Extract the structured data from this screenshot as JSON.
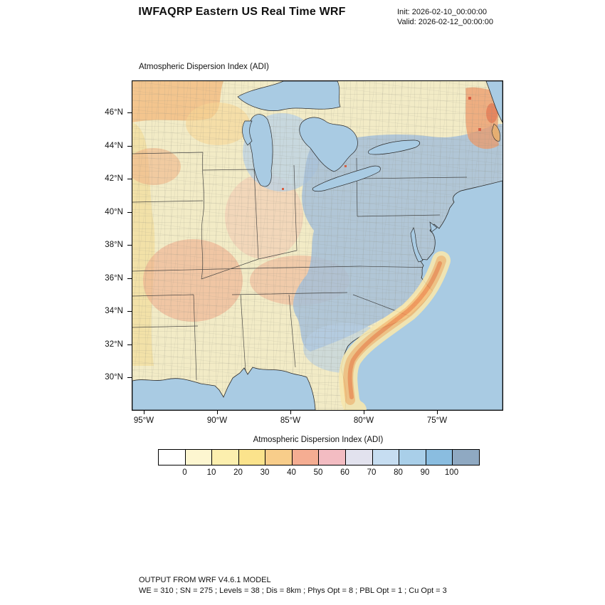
{
  "header": {
    "title": "IWFAQRP Eastern US Real Time WRF",
    "init": "Init: 2026-02-10_00:00:00",
    "valid": "Valid: 2026-02-12_00:00:00"
  },
  "plot": {
    "label": "Atmospheric Dispersion Index   (ADI)"
  },
  "axes": {
    "y_ticks": [
      "46°N",
      "44°N",
      "42°N",
      "40°N",
      "38°N",
      "36°N",
      "34°N",
      "32°N",
      "30°N"
    ],
    "x_ticks": [
      "95°W",
      "90°W",
      "85°W",
      "80°W",
      "75°W"
    ]
  },
  "chart_data": {
    "type": "heatmap",
    "title": "Atmospheric Dispersion Index (ADI)",
    "field": "Atmospheric Dispersion Index",
    "projection": "lat-lon map of Eastern US",
    "x_axis": {
      "label": "longitude",
      "ticks": [
        "95°W",
        "90°W",
        "85°W",
        "80°W",
        "75°W"
      ],
      "approx_range": [
        "96°W",
        "70.5°W"
      ]
    },
    "y_axis": {
      "label": "latitude",
      "ticks": [
        "46°N",
        "44°N",
        "42°N",
        "40°N",
        "38°N",
        "36°N",
        "34°N",
        "32°N",
        "30°N"
      ],
      "approx_range": [
        "28.2°N",
        "47.9°N"
      ]
    },
    "colorbar": {
      "label": "Atmospheric Dispersion Index  (ADI)",
      "orientation": "horizontal",
      "tick_labels": [
        "0",
        "10",
        "20",
        "30",
        "40",
        "50",
        "60",
        "70",
        "80",
        "90",
        "100"
      ],
      "colors": [
        "#ffffff",
        "#fdf6d0",
        "#fcefae",
        "#fbe38c",
        "#f8cd8a",
        "#f5ad92",
        "#f3bcc2",
        "#e2e2ee",
        "#c6ddf1",
        "#a9cfe9",
        "#8abde0",
        "#8fa9c2"
      ]
    },
    "spatial_summary": {
      "high_values_blue": "ADI 70-100 (blue/gray-blue) over Michigan, Ohio Valley, Appalachians, New York/Pennsylvania, Virginia/Carolinas piedmont and Georgia coastal plain",
      "low_values_warm": "ADI 10-60 (yellow/orange/pink) over upper Midwest, Mississippi Valley, Missouri/Arkansas, Gulf coast, Maine and an offshore Gulf Stream band along the southeast Atlantic coast",
      "water": "Great Lakes, Atlantic and Gulf of Mexico shown in light blue"
    }
  },
  "footer": {
    "line1": "OUTPUT FROM WRF V4.6.1 MODEL",
    "line2": "WE = 310 ; SN = 275 ; Levels = 38 ; Dis = 8km ; Phys Opt = 8 ; PBL Opt = 1 ; Cu Opt = 3"
  }
}
